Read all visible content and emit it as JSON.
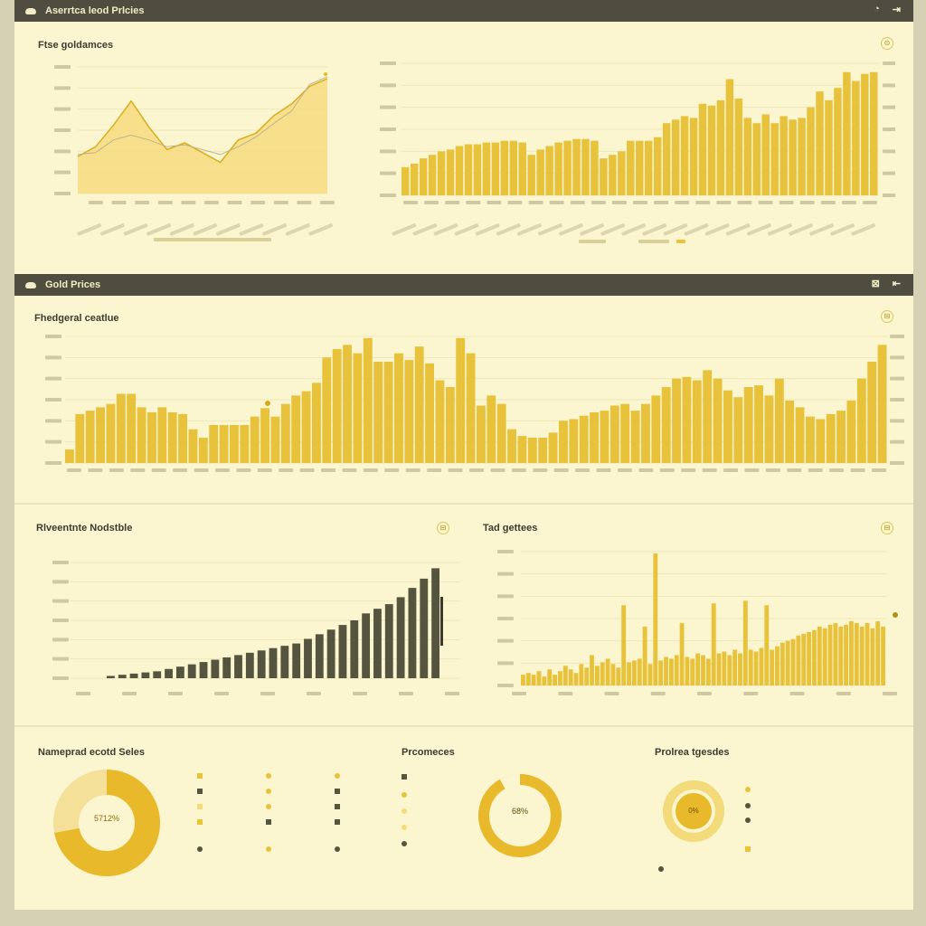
{
  "app": {
    "title": "Aserrtca leod Prlcies",
    "controls": [
      "◔",
      "⇥"
    ]
  },
  "section2": {
    "title": "Gold Prices",
    "controls": [
      "⊠",
      "⇤"
    ]
  },
  "panels": {
    "p1": {
      "title": "Ftse goldamces"
    },
    "p3": {
      "title": "Fhedgeral ceatlue"
    },
    "p4": {
      "title": "Rlveentnte Nodstble"
    },
    "p5": {
      "title": "Tad gettees"
    },
    "p6": {
      "title": "Nameprad ecotd Seles",
      "donut_label": "5712%"
    },
    "p7": {
      "title": "Prcomeces",
      "donut_label": "68%"
    },
    "p8": {
      "title": "Prolrea tgesdes",
      "donut_label": "0%"
    }
  },
  "icons": {
    "panel_menu": "menu-circle-icon",
    "logo": "cloud-logo-icon"
  },
  "colors": {
    "gold": "#e8c23b",
    "gold_light": "#f3da7a",
    "dark": "#55543f",
    "header": "#4e4d3f",
    "bg": "#fbf6cf"
  },
  "chart_data": [
    {
      "type": "area",
      "series": [
        {
          "values": [
            38,
            48,
            70,
            95,
            68,
            45,
            52,
            42,
            32,
            55,
            62,
            80,
            92,
            110,
            118
          ]
        },
        {
          "values": [
            40,
            42,
            55,
            60,
            55,
            48,
            50,
            45,
            40,
            48,
            58,
            72,
            85,
            112,
            120
          ]
        }
      ]
    },
    {
      "type": "bar",
      "values": [
        32,
        36,
        42,
        46,
        50,
        52,
        56,
        58,
        58,
        60,
        60,
        62,
        62,
        60,
        46,
        52,
        56,
        60,
        62,
        64,
        64,
        62,
        42,
        46,
        50,
        62,
        62,
        62,
        66,
        82,
        86,
        90,
        88,
        104,
        102,
        108,
        132,
        110,
        88,
        82,
        92,
        82,
        90,
        86,
        88,
        100,
        118,
        108,
        122,
        140,
        130,
        138,
        140
      ]
    },
    {
      "type": "bar",
      "values": [
        16,
        58,
        62,
        66,
        70,
        82,
        82,
        66,
        60,
        66,
        60,
        58,
        40,
        30,
        45,
        45,
        45,
        45,
        55,
        65,
        55,
        70,
        80,
        85,
        95,
        125,
        135,
        140,
        130,
        148,
        120,
        120,
        130,
        122,
        138,
        118,
        98,
        90,
        148,
        130,
        68,
        80,
        70,
        40,
        32,
        30,
        30,
        36,
        50,
        52,
        56,
        60,
        62,
        68,
        70,
        62,
        70,
        80,
        90,
        100,
        102,
        98,
        110,
        100,
        86,
        78,
        90,
        92,
        80,
        100,
        74,
        66,
        55,
        52,
        58,
        62,
        74,
        100,
        120,
        140
      ]
    },
    {
      "type": "bar",
      "values": [
        2,
        3,
        4,
        5,
        6,
        8,
        10,
        12,
        14,
        16,
        18,
        20,
        22,
        24,
        26,
        28,
        30,
        34,
        38,
        42,
        46,
        50,
        56,
        60,
        64,
        70,
        78,
        86,
        95
      ]
    },
    {
      "type": "bar",
      "values": [
        12,
        14,
        12,
        16,
        10,
        18,
        12,
        16,
        22,
        18,
        14,
        24,
        20,
        34,
        22,
        26,
        30,
        24,
        20,
        90,
        26,
        28,
        30,
        66,
        24,
        148,
        28,
        32,
        30,
        34,
        70,
        32,
        30,
        36,
        34,
        30,
        92,
        36,
        38,
        34,
        40,
        36,
        95,
        40,
        38,
        42,
        90,
        40,
        44,
        48,
        50,
        52,
        56,
        58,
        60,
        62,
        66,
        64,
        68,
        70,
        66,
        68,
        72,
        70,
        66,
        70,
        64,
        72,
        66
      ]
    },
    {
      "type": "pie",
      "values": [
        72,
        28
      ]
    },
    {
      "type": "pie",
      "values": [
        92,
        8
      ]
    },
    {
      "type": "pie",
      "values": [
        100
      ]
    }
  ]
}
